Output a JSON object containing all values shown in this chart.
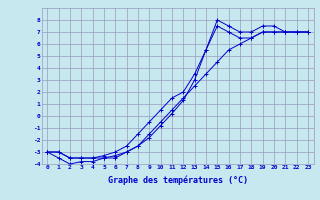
{
  "xlabel": "Graphe des températures (°C)",
  "background_color": "#c8e8f0",
  "grid_color": "#9999bb",
  "line_color": "#0000cc",
  "x_hours": [
    0,
    1,
    2,
    3,
    4,
    5,
    6,
    7,
    8,
    9,
    10,
    11,
    12,
    13,
    14,
    15,
    16,
    17,
    18,
    19,
    20,
    21,
    22,
    23
  ],
  "line1": [
    -3.0,
    -3.0,
    -3.5,
    -3.5,
    -3.5,
    -3.5,
    -3.5,
    -3.0,
    -2.5,
    -1.5,
    -0.5,
    0.5,
    1.5,
    2.5,
    3.5,
    4.5,
    5.5,
    6.0,
    6.5,
    7.0,
    7.0,
    7.0,
    7.0,
    7.0
  ],
  "line2": [
    -3.0,
    -3.5,
    -4.0,
    -3.8,
    -3.8,
    -3.5,
    -3.3,
    -3.0,
    -2.5,
    -1.8,
    -0.8,
    0.2,
    1.3,
    3.0,
    5.5,
    8.0,
    7.5,
    7.0,
    7.0,
    7.5,
    7.5,
    7.0,
    7.0,
    7.0
  ],
  "line3": [
    -3.0,
    -3.0,
    -3.5,
    -3.5,
    -3.5,
    -3.3,
    -3.0,
    -2.5,
    -1.5,
    -0.5,
    0.5,
    1.5,
    2.0,
    3.5,
    5.5,
    7.5,
    7.0,
    6.5,
    6.5,
    7.0,
    7.0,
    7.0,
    7.0,
    7.0
  ],
  "ylim": [
    -4,
    9
  ],
  "xlim": [
    -0.5,
    23.5
  ],
  "yticks": [
    -4,
    -3,
    -2,
    -1,
    0,
    1,
    2,
    3,
    4,
    5,
    6,
    7,
    8
  ],
  "xticks": [
    0,
    1,
    2,
    3,
    4,
    5,
    6,
    7,
    8,
    9,
    10,
    11,
    12,
    13,
    14,
    15,
    16,
    17,
    18,
    19,
    20,
    21,
    22,
    23
  ],
  "tick_fontsize": 4.5,
  "xlabel_fontsize": 6.0,
  "marker_size": 2.5,
  "linewidth": 0.7
}
